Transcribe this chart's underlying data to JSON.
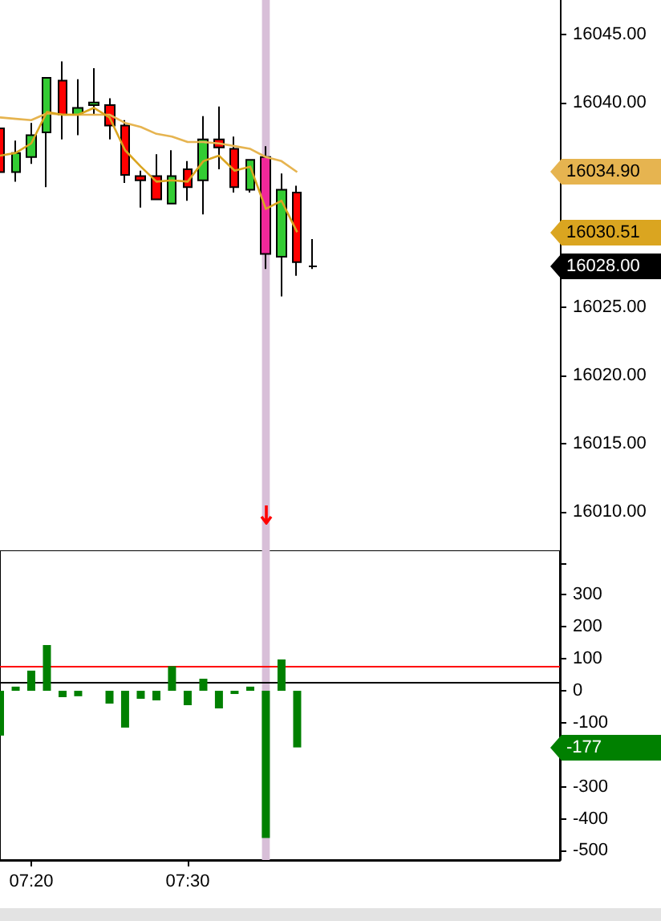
{
  "chart_data": [
    {
      "type": "candlestick",
      "x": [
        7.3,
        7.3167,
        7.3333,
        7.35,
        7.3667,
        7.3833,
        7.4,
        7.4167,
        7.4333,
        7.45,
        7.4667,
        7.4833,
        7.5,
        7.5167,
        7.5333,
        7.55,
        7.5667,
        7.5833,
        7.6,
        7.6167,
        7.6333
      ],
      "ohlc": [
        [
          16038.1,
          16038.1,
          16034.9,
          16034.9
        ],
        [
          16034.9,
          16037.2,
          16034.2,
          16036.3
        ],
        [
          16036.0,
          16038.5,
          16035.5,
          16037.6
        ],
        [
          16037.8,
          16041.8,
          16033.8,
          16041.8
        ],
        [
          16041.6,
          16043.0,
          16037.3,
          16039.1
        ],
        [
          16039.1,
          16041.7,
          16037.6,
          16039.6
        ],
        [
          16039.8,
          16042.5,
          16039.1,
          16040.0
        ],
        [
          16039.8,
          16040.3,
          16037.3,
          16038.3
        ],
        [
          16038.3,
          16038.7,
          16034.1,
          16034.7
        ],
        [
          16034.6,
          16035.0,
          16032.3,
          16034.3
        ],
        [
          16034.6,
          16036.2,
          16032.9,
          16032.9
        ],
        [
          16032.6,
          16036.5,
          16032.6,
          16034.6
        ],
        [
          16035.1,
          16035.7,
          16032.8,
          16033.8
        ],
        [
          16034.3,
          16039.0,
          16031.8,
          16037.3
        ],
        [
          16037.3,
          16039.7,
          16035.1,
          16036.7
        ],
        [
          16036.6,
          16037.5,
          16033.4,
          16033.8
        ],
        [
          16033.6,
          16035.8,
          16033.4,
          16035.8
        ],
        [
          16036.0,
          16036.8,
          16027.8,
          16028.9
        ],
        [
          16028.7,
          16034.8,
          16025.8,
          16033.6
        ],
        [
          16033.4,
          16033.9,
          16027.3,
          16028.3
        ],
        [
          16028.0,
          16030.0,
          16027.8,
          16028.0
        ]
      ],
      "colors": [
        "#ff0000",
        "#33cc33",
        "#33cc33",
        "#33cc33",
        "#ff0000",
        "#33cc33",
        "#33cc33",
        "#ff0000",
        "#ff0000",
        "#ff0000",
        "#ff0000",
        "#33cc33",
        "#ff0000",
        "#33cc33",
        "#ff0000",
        "#ff0000",
        "#33cc33",
        "#f0289a",
        "#33cc33",
        "#ff0000",
        "#000000"
      ],
      "series": [
        {
          "type": "line",
          "color": "#e6b450",
          "x": [
            7.3,
            7.3167,
            7.3333,
            7.35,
            7.3667,
            7.3833,
            7.4,
            7.4167,
            7.4333,
            7.45,
            7.4667,
            7.4833,
            7.5,
            7.5167,
            7.5333,
            7.55,
            7.5667,
            7.5833,
            7.6,
            7.6167
          ],
          "values": [
            16038.9,
            16038.8,
            16038.7,
            16039.2,
            16039.1,
            16039.1,
            16039.1,
            16039.1,
            16038.5,
            16038.2,
            16037.7,
            16037.5,
            16037.1,
            16037.1,
            16037.0,
            16036.8,
            16036.6,
            16036.0,
            16035.7,
            16034.9
          ]
        },
        {
          "type": "line",
          "color": "#daa520",
          "x": [
            7.3,
            7.3167,
            7.3333,
            7.35,
            7.3667,
            7.3833,
            7.4,
            7.4167,
            7.4333,
            7.45,
            7.4667,
            7.4833,
            7.5,
            7.5167,
            7.5333,
            7.55,
            7.5667,
            7.5833,
            7.6,
            7.6167
          ],
          "values": [
            16036.1,
            16036.3,
            16037.0,
            16039.3,
            16039.1,
            16039.1,
            16039.6,
            16038.9,
            16036.5,
            16035.3,
            16034.2,
            16034.3,
            16034.2,
            16035.7,
            16036.1,
            16035.0,
            16035.3,
            16032.2,
            16032.8,
            16030.5
          ]
        }
      ],
      "xlim": [
        7.3,
        7.8967
      ],
      "ylim": [
        16007.2,
        16047.5
      ],
      "yticks": [
        {
          "value": 16010,
          "label": "16010.00"
        },
        {
          "value": 16015,
          "label": "16015.00"
        },
        {
          "value": 16020,
          "label": "16020.00"
        },
        {
          "value": 16025,
          "label": "16025.00"
        },
        {
          "value": 16030,
          "label": null
        },
        {
          "value": 16035,
          "label": null
        },
        {
          "value": 16040,
          "label": "16040.00"
        },
        {
          "value": 16045,
          "label": "16045.00"
        }
      ],
      "tick_labels": "y",
      "bands": [
        {
          "axis": "x",
          "from": 7.5792,
          "to": 7.5875,
          "color": "#d8bfd8"
        }
      ],
      "annotations": [
        "16034.90",
        "16030.51",
        "16028.00"
      ],
      "grid": false
    },
    {
      "type": "bar",
      "x": [
        7.3,
        7.3167,
        7.3333,
        7.35,
        7.3667,
        7.3833,
        7.4,
        7.4167,
        7.4333,
        7.45,
        7.4667,
        7.4833,
        7.5,
        7.5167,
        7.5333,
        7.55,
        7.5667,
        7.5833,
        7.6,
        7.6167
      ],
      "values": [
        -140,
        13,
        63,
        143,
        -20,
        -17,
        null,
        -40,
        -115,
        -25,
        -30,
        77,
        -45,
        38,
        -55,
        -10,
        13,
        -460,
        98,
        -177
      ],
      "color": "#008000",
      "xlim": [
        7.3,
        7.8967
      ],
      "xticks": [
        {
          "value": 7.3333,
          "label": "07:20"
        },
        {
          "value": 7.5,
          "label": "07:30"
        }
      ],
      "ylim": [
        -529,
        439
      ],
      "yticks": [
        -500,
        -400,
        -300,
        {
          "value": -200,
          "label": null
        },
        -100,
        0,
        100,
        200,
        300,
        {
          "value": 400,
          "label": null
        }
      ],
      "ref_lines": [
        {
          "axis": "y",
          "value": 77,
          "color": "#ff0000"
        },
        {
          "axis": "y",
          "value": 27,
          "color": "#000000"
        }
      ],
      "bands": [
        {
          "axis": "x",
          "from": 7.5792,
          "to": 7.5875,
          "color": "#d8bfd8"
        }
      ],
      "annotations": [
        "-177"
      ],
      "grid": false
    }
  ]
}
